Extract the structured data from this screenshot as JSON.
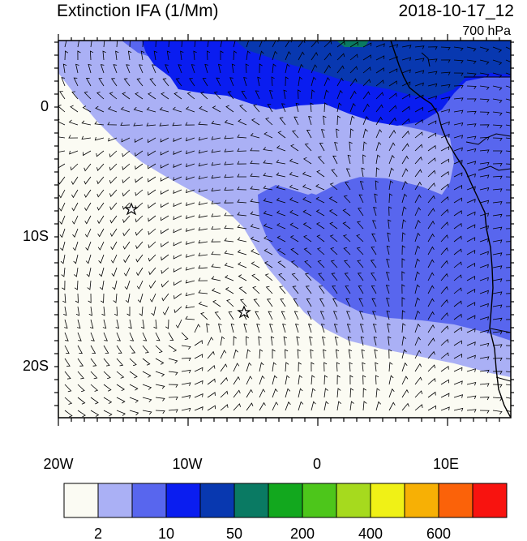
{
  "title": "Extinction IFA (1/Mm)",
  "datetime": "2018-10-17_12",
  "level": "700 hPa",
  "map": {
    "lon_range": [
      -20,
      15
    ],
    "lat_range": [
      -24,
      5
    ],
    "x_ticks": [
      "20W",
      "10W",
      "0",
      "10E"
    ],
    "y_ticks": [
      "0",
      "10S",
      "20S"
    ],
    "markers": [
      {
        "name": "station-star-1",
        "lon": -14.4,
        "lat": -8.0
      },
      {
        "name": "station-star-2",
        "lon": -5.7,
        "lat": -16.0
      }
    ]
  },
  "colorbar": {
    "colors": [
      "#fbfbf3",
      "#aab0f5",
      "#5866ee",
      "#0a1df0",
      "#0838b0",
      "#0a7a63",
      "#12a81e",
      "#4dc61b",
      "#a6da1e",
      "#f0f116",
      "#f7b005",
      "#fb6209",
      "#f8130f"
    ],
    "labels": [
      "2",
      "10",
      "50",
      "200",
      "400",
      "600"
    ]
  }
}
